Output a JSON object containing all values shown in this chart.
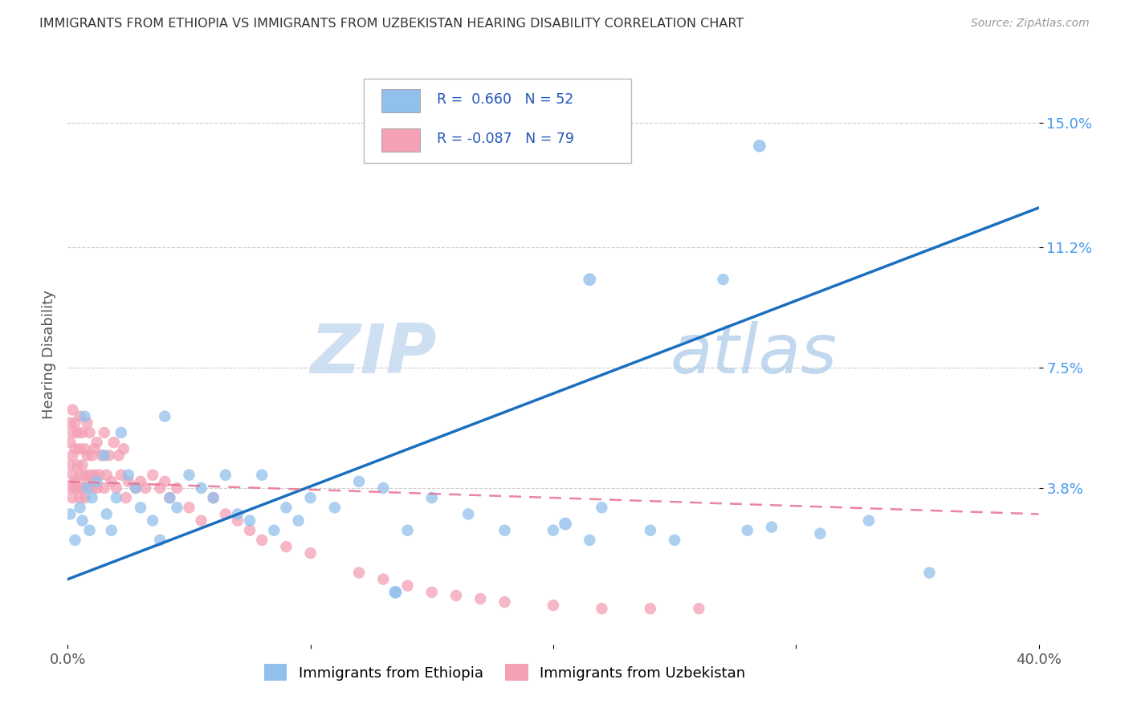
{
  "title": "IMMIGRANTS FROM ETHIOPIA VS IMMIGRANTS FROM UZBEKISTAN HEARING DISABILITY CORRELATION CHART",
  "source": "Source: ZipAtlas.com",
  "ylabel": "Hearing Disability",
  "xlim": [
    0.0,
    0.4
  ],
  "ylim": [
    -0.01,
    0.168
  ],
  "yticks": [
    0.038,
    0.075,
    0.112,
    0.15
  ],
  "yticklabels": [
    "3.8%",
    "7.5%",
    "11.2%",
    "15.0%"
  ],
  "color_ethiopia": "#92C0EC",
  "color_uzbekistan": "#F4A0B5",
  "trendline_ethiopia": "#1A6FBF",
  "trendline_uzbekistan": "#E87090",
  "watermark_zip": "ZIP",
  "watermark_atlas": "atlas",
  "ethiopia_slope": 0.285,
  "ethiopia_intercept": 0.01,
  "uzbekistan_slope": -0.025,
  "uzbekistan_intercept": 0.04,
  "ethiopia_points_x": [
    0.001,
    0.003,
    0.005,
    0.006,
    0.007,
    0.008,
    0.009,
    0.01,
    0.012,
    0.015,
    0.016,
    0.018,
    0.02,
    0.022,
    0.025,
    0.028,
    0.03,
    0.035,
    0.038,
    0.04,
    0.042,
    0.045,
    0.05,
    0.055,
    0.06,
    0.065,
    0.07,
    0.075,
    0.08,
    0.085,
    0.09,
    0.095,
    0.1,
    0.11,
    0.12,
    0.13,
    0.14,
    0.15,
    0.165,
    0.18,
    0.2,
    0.22,
    0.24,
    0.135,
    0.215,
    0.25,
    0.27,
    0.28,
    0.29,
    0.31,
    0.33,
    0.355
  ],
  "ethiopia_points_y": [
    0.03,
    0.022,
    0.032,
    0.028,
    0.06,
    0.038,
    0.025,
    0.035,
    0.04,
    0.048,
    0.03,
    0.025,
    0.035,
    0.055,
    0.042,
    0.038,
    0.032,
    0.028,
    0.022,
    0.06,
    0.035,
    0.032,
    0.042,
    0.038,
    0.035,
    0.042,
    0.03,
    0.028,
    0.042,
    0.025,
    0.032,
    0.028,
    0.035,
    0.032,
    0.04,
    0.038,
    0.025,
    0.035,
    0.03,
    0.025,
    0.025,
    0.032,
    0.025,
    0.006,
    0.022,
    0.022,
    0.102,
    0.025,
    0.026,
    0.024,
    0.028,
    0.012
  ],
  "uzbekistan_points_x": [
    0.001,
    0.001,
    0.001,
    0.001,
    0.002,
    0.002,
    0.002,
    0.002,
    0.002,
    0.003,
    0.003,
    0.003,
    0.003,
    0.004,
    0.004,
    0.004,
    0.005,
    0.005,
    0.005,
    0.005,
    0.006,
    0.006,
    0.006,
    0.007,
    0.007,
    0.007,
    0.008,
    0.008,
    0.008,
    0.009,
    0.009,
    0.01,
    0.01,
    0.011,
    0.011,
    0.012,
    0.012,
    0.013,
    0.014,
    0.015,
    0.015,
    0.016,
    0.017,
    0.018,
    0.019,
    0.02,
    0.021,
    0.022,
    0.023,
    0.024,
    0.025,
    0.028,
    0.03,
    0.032,
    0.035,
    0.038,
    0.04,
    0.042,
    0.045,
    0.05,
    0.055,
    0.06,
    0.065,
    0.07,
    0.075,
    0.08,
    0.09,
    0.1,
    0.12,
    0.13,
    0.14,
    0.15,
    0.16,
    0.17,
    0.18,
    0.2,
    0.22,
    0.24,
    0.26
  ],
  "uzbekistan_points_y": [
    0.045,
    0.052,
    0.038,
    0.058,
    0.042,
    0.055,
    0.048,
    0.035,
    0.062,
    0.04,
    0.058,
    0.038,
    0.05,
    0.045,
    0.055,
    0.038,
    0.042,
    0.05,
    0.035,
    0.06,
    0.045,
    0.055,
    0.038,
    0.042,
    0.05,
    0.035,
    0.048,
    0.04,
    0.058,
    0.042,
    0.055,
    0.038,
    0.048,
    0.042,
    0.05,
    0.038,
    0.052,
    0.042,
    0.048,
    0.038,
    0.055,
    0.042,
    0.048,
    0.04,
    0.052,
    0.038,
    0.048,
    0.042,
    0.05,
    0.035,
    0.04,
    0.038,
    0.04,
    0.038,
    0.042,
    0.038,
    0.04,
    0.035,
    0.038,
    0.032,
    0.028,
    0.035,
    0.03,
    0.028,
    0.025,
    0.022,
    0.02,
    0.018,
    0.012,
    0.01,
    0.008,
    0.006,
    0.005,
    0.004,
    0.003,
    0.002,
    0.001,
    0.001,
    0.001
  ],
  "background_color": "#FFFFFF",
  "grid_color": "#CCCCCC"
}
